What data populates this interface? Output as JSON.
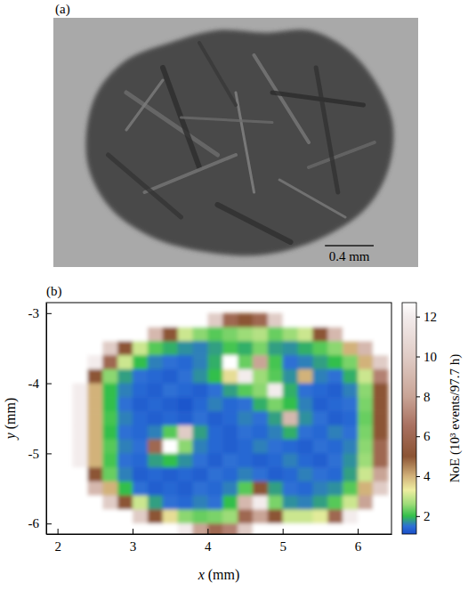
{
  "chart_data": [
    {
      "type": "image",
      "title": "(a)",
      "scale_bar": {
        "value": 0.4,
        "label": "0.4 mm"
      }
    },
    {
      "type": "heatmap",
      "title": "(b)",
      "x_label": "x (mm)",
      "y_label": "y (mm)",
      "xlim": [
        1.85,
        6.45
      ],
      "ylim": [
        -6.15,
        -2.85
      ],
      "xticks": [
        2,
        3,
        4,
        5,
        6
      ],
      "yticks": [
        -3,
        -4,
        -5,
        -6
      ],
      "x": [
        2.3,
        2.5,
        2.7,
        2.9,
        3.1,
        3.3,
        3.5,
        3.7,
        3.9,
        4.1,
        4.3,
        4.5,
        4.7,
        4.9,
        5.1,
        5.3,
        5.5,
        5.7,
        5.9,
        6.1,
        6.3
      ],
      "y": [
        -3.1,
        -3.3,
        -3.5,
        -3.7,
        -3.9,
        -4.1,
        -4.3,
        -4.5,
        -4.7,
        -4.9,
        -5.1,
        -5.3,
        -5.5,
        -5.7,
        -5.9,
        -6.1
      ],
      "cells": [
        [
          14,
          14,
          14,
          14,
          14,
          14,
          14,
          14,
          14,
          10,
          6,
          5,
          6,
          10,
          14,
          14,
          14,
          14,
          14,
          14,
          14
        ],
        [
          14,
          14,
          14,
          14,
          14,
          9,
          5,
          3,
          2.5,
          2.2,
          2.4,
          2.6,
          2.8,
          2.3,
          2.6,
          3,
          5,
          9,
          14,
          14,
          14
        ],
        [
          14,
          14,
          10,
          5,
          3,
          2.2,
          1.9,
          1.7,
          1.6,
          1.8,
          2.1,
          1.9,
          2.4,
          1.8,
          1.7,
          1.9,
          2.2,
          2.5,
          4,
          9,
          14
        ],
        [
          14,
          12,
          6,
          3,
          2,
          1.6,
          1.5,
          1.4,
          1.6,
          1.9,
          13,
          2.3,
          8,
          2.1,
          1.5,
          1.6,
          1.8,
          2,
          2.4,
          4,
          10
        ],
        [
          13,
          5,
          2.5,
          1.8,
          1.5,
          1.4,
          1.3,
          1.5,
          1.7,
          2,
          3.5,
          12,
          2.6,
          2.2,
          1.7,
          4,
          1.6,
          1.5,
          1.9,
          3,
          7
        ],
        [
          12,
          4,
          2,
          1.6,
          1.4,
          1.3,
          1.5,
          1.4,
          1.3,
          1.5,
          1.8,
          2.2,
          2.5,
          12,
          1.9,
          1.5,
          1.4,
          1.3,
          1.6,
          2.5,
          5
        ],
        [
          12,
          4,
          2,
          1.5,
          1.3,
          1.4,
          1.3,
          1.2,
          1.4,
          1.6,
          1.4,
          1.5,
          1.9,
          2.4,
          2,
          1.6,
          1.3,
          1.4,
          1.5,
          2.4,
          5
        ],
        [
          12,
          4,
          2.1,
          1.6,
          1.4,
          1.3,
          1.4,
          1.3,
          1.5,
          1.3,
          1.4,
          1.6,
          1.5,
          1.8,
          9,
          1.7,
          1.5,
          1.3,
          1.4,
          2.3,
          5
        ],
        [
          12,
          4,
          2,
          1.5,
          1.4,
          1.6,
          2.2,
          10,
          1.8,
          1.4,
          1.3,
          1.5,
          1.4,
          1.6,
          1.9,
          1.5,
          1.4,
          1.6,
          1.5,
          2.4,
          5
        ],
        [
          12,
          4,
          2.2,
          1.6,
          1.5,
          6,
          13,
          2.5,
          1.6,
          1.4,
          1.3,
          1.4,
          1.6,
          1.5,
          1.4,
          1.3,
          1.5,
          1.4,
          1.6,
          2.5,
          6
        ],
        [
          12,
          4,
          2.1,
          1.5,
          1.4,
          1.8,
          2,
          1.7,
          1.5,
          1.3,
          1.5,
          1.4,
          1.3,
          1.4,
          1.6,
          1.4,
          1.3,
          1.5,
          1.7,
          2.6,
          6
        ],
        [
          13,
          5,
          2.3,
          1.6,
          1.3,
          1.4,
          1.3,
          1.4,
          1.3,
          1.5,
          1.4,
          1.6,
          1.5,
          1.3,
          1.4,
          1.6,
          1.5,
          1.4,
          1.8,
          3,
          8
        ],
        [
          14,
          9,
          4,
          2,
          1.5,
          1.3,
          1.4,
          1.3,
          1.5,
          1.4,
          1.6,
          2.2,
          5,
          1.8,
          1.5,
          1.4,
          1.6,
          1.7,
          2.2,
          4,
          10
        ],
        [
          14,
          14,
          10,
          5,
          3,
          1.8,
          1.5,
          1.4,
          1.6,
          1.5,
          2,
          9,
          12,
          2.4,
          1.7,
          1.6,
          1.8,
          2.2,
          3,
          8,
          14
        ],
        [
          14,
          14,
          14,
          14,
          10,
          5,
          3.5,
          2.5,
          2.3,
          2.4,
          2.6,
          6,
          8,
          5,
          3,
          3,
          3.2,
          6,
          12,
          14,
          14
        ],
        [
          14,
          14,
          14,
          14,
          14,
          14,
          14,
          12,
          8,
          6,
          7,
          10,
          14,
          14,
          14,
          14,
          14,
          14,
          14,
          14,
          14
        ]
      ],
      "colorbar": {
        "label": "NoE (10³ events/97.7 h)",
        "lim": [
          1.1,
          12.7
        ],
        "ticks": [
          2,
          4,
          6,
          8,
          10,
          12
        ]
      }
    }
  ]
}
